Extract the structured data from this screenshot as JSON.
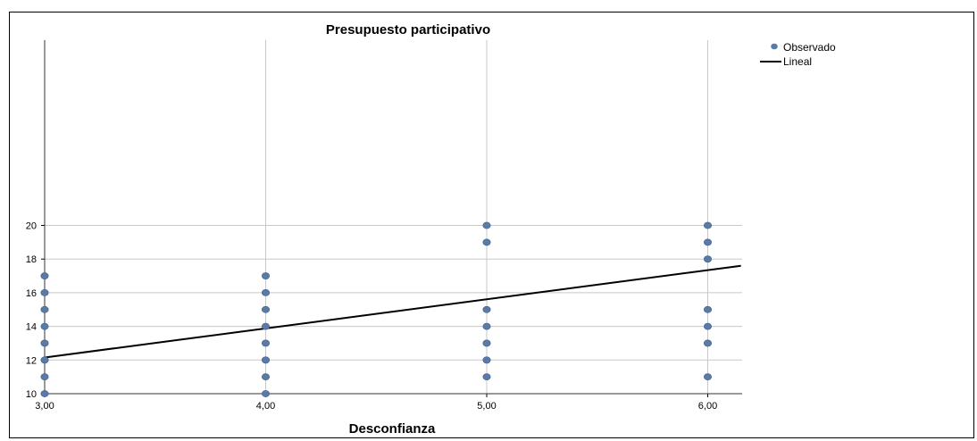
{
  "chart_data": {
    "type": "scatter",
    "title": "Presupuesto participativo",
    "xlabel": "Desconfianza",
    "ylabel": "",
    "xlim": [
      3.0,
      6.15
    ],
    "ylim": [
      10,
      20.5
    ],
    "xticks": [
      3,
      4,
      5,
      6
    ],
    "xtick_labels": [
      "3,00",
      "4,00",
      "5,00",
      "6,00"
    ],
    "yticks": [
      10,
      12,
      14,
      16,
      18,
      20
    ],
    "ytick_labels": [
      "10",
      "12",
      "14",
      "16",
      "18",
      "20"
    ],
    "grid": true,
    "legend_position": "right",
    "series": [
      {
        "name": "Observado",
        "kind": "scatter",
        "color": "#5b7aa6",
        "points": [
          [
            3,
            10
          ],
          [
            3,
            11
          ],
          [
            3,
            12
          ],
          [
            3,
            13
          ],
          [
            3,
            14
          ],
          [
            3,
            15
          ],
          [
            3,
            16
          ],
          [
            3,
            17
          ],
          [
            4,
            10
          ],
          [
            4,
            11
          ],
          [
            4,
            12
          ],
          [
            4,
            13
          ],
          [
            4,
            14
          ],
          [
            4,
            15
          ],
          [
            4,
            16
          ],
          [
            4,
            17
          ],
          [
            5,
            11
          ],
          [
            5,
            12
          ],
          [
            5,
            13
          ],
          [
            5,
            14
          ],
          [
            5,
            15
          ],
          [
            5,
            19
          ],
          [
            5,
            20
          ],
          [
            6,
            11
          ],
          [
            6,
            13
          ],
          [
            6,
            14
          ],
          [
            6,
            15
          ],
          [
            6,
            18
          ],
          [
            6,
            19
          ],
          [
            6,
            20
          ]
        ]
      },
      {
        "name": "Lineal",
        "kind": "line",
        "color": "#000000",
        "points": [
          [
            3.0,
            12.15
          ],
          [
            6.15,
            17.6
          ]
        ]
      }
    ]
  }
}
